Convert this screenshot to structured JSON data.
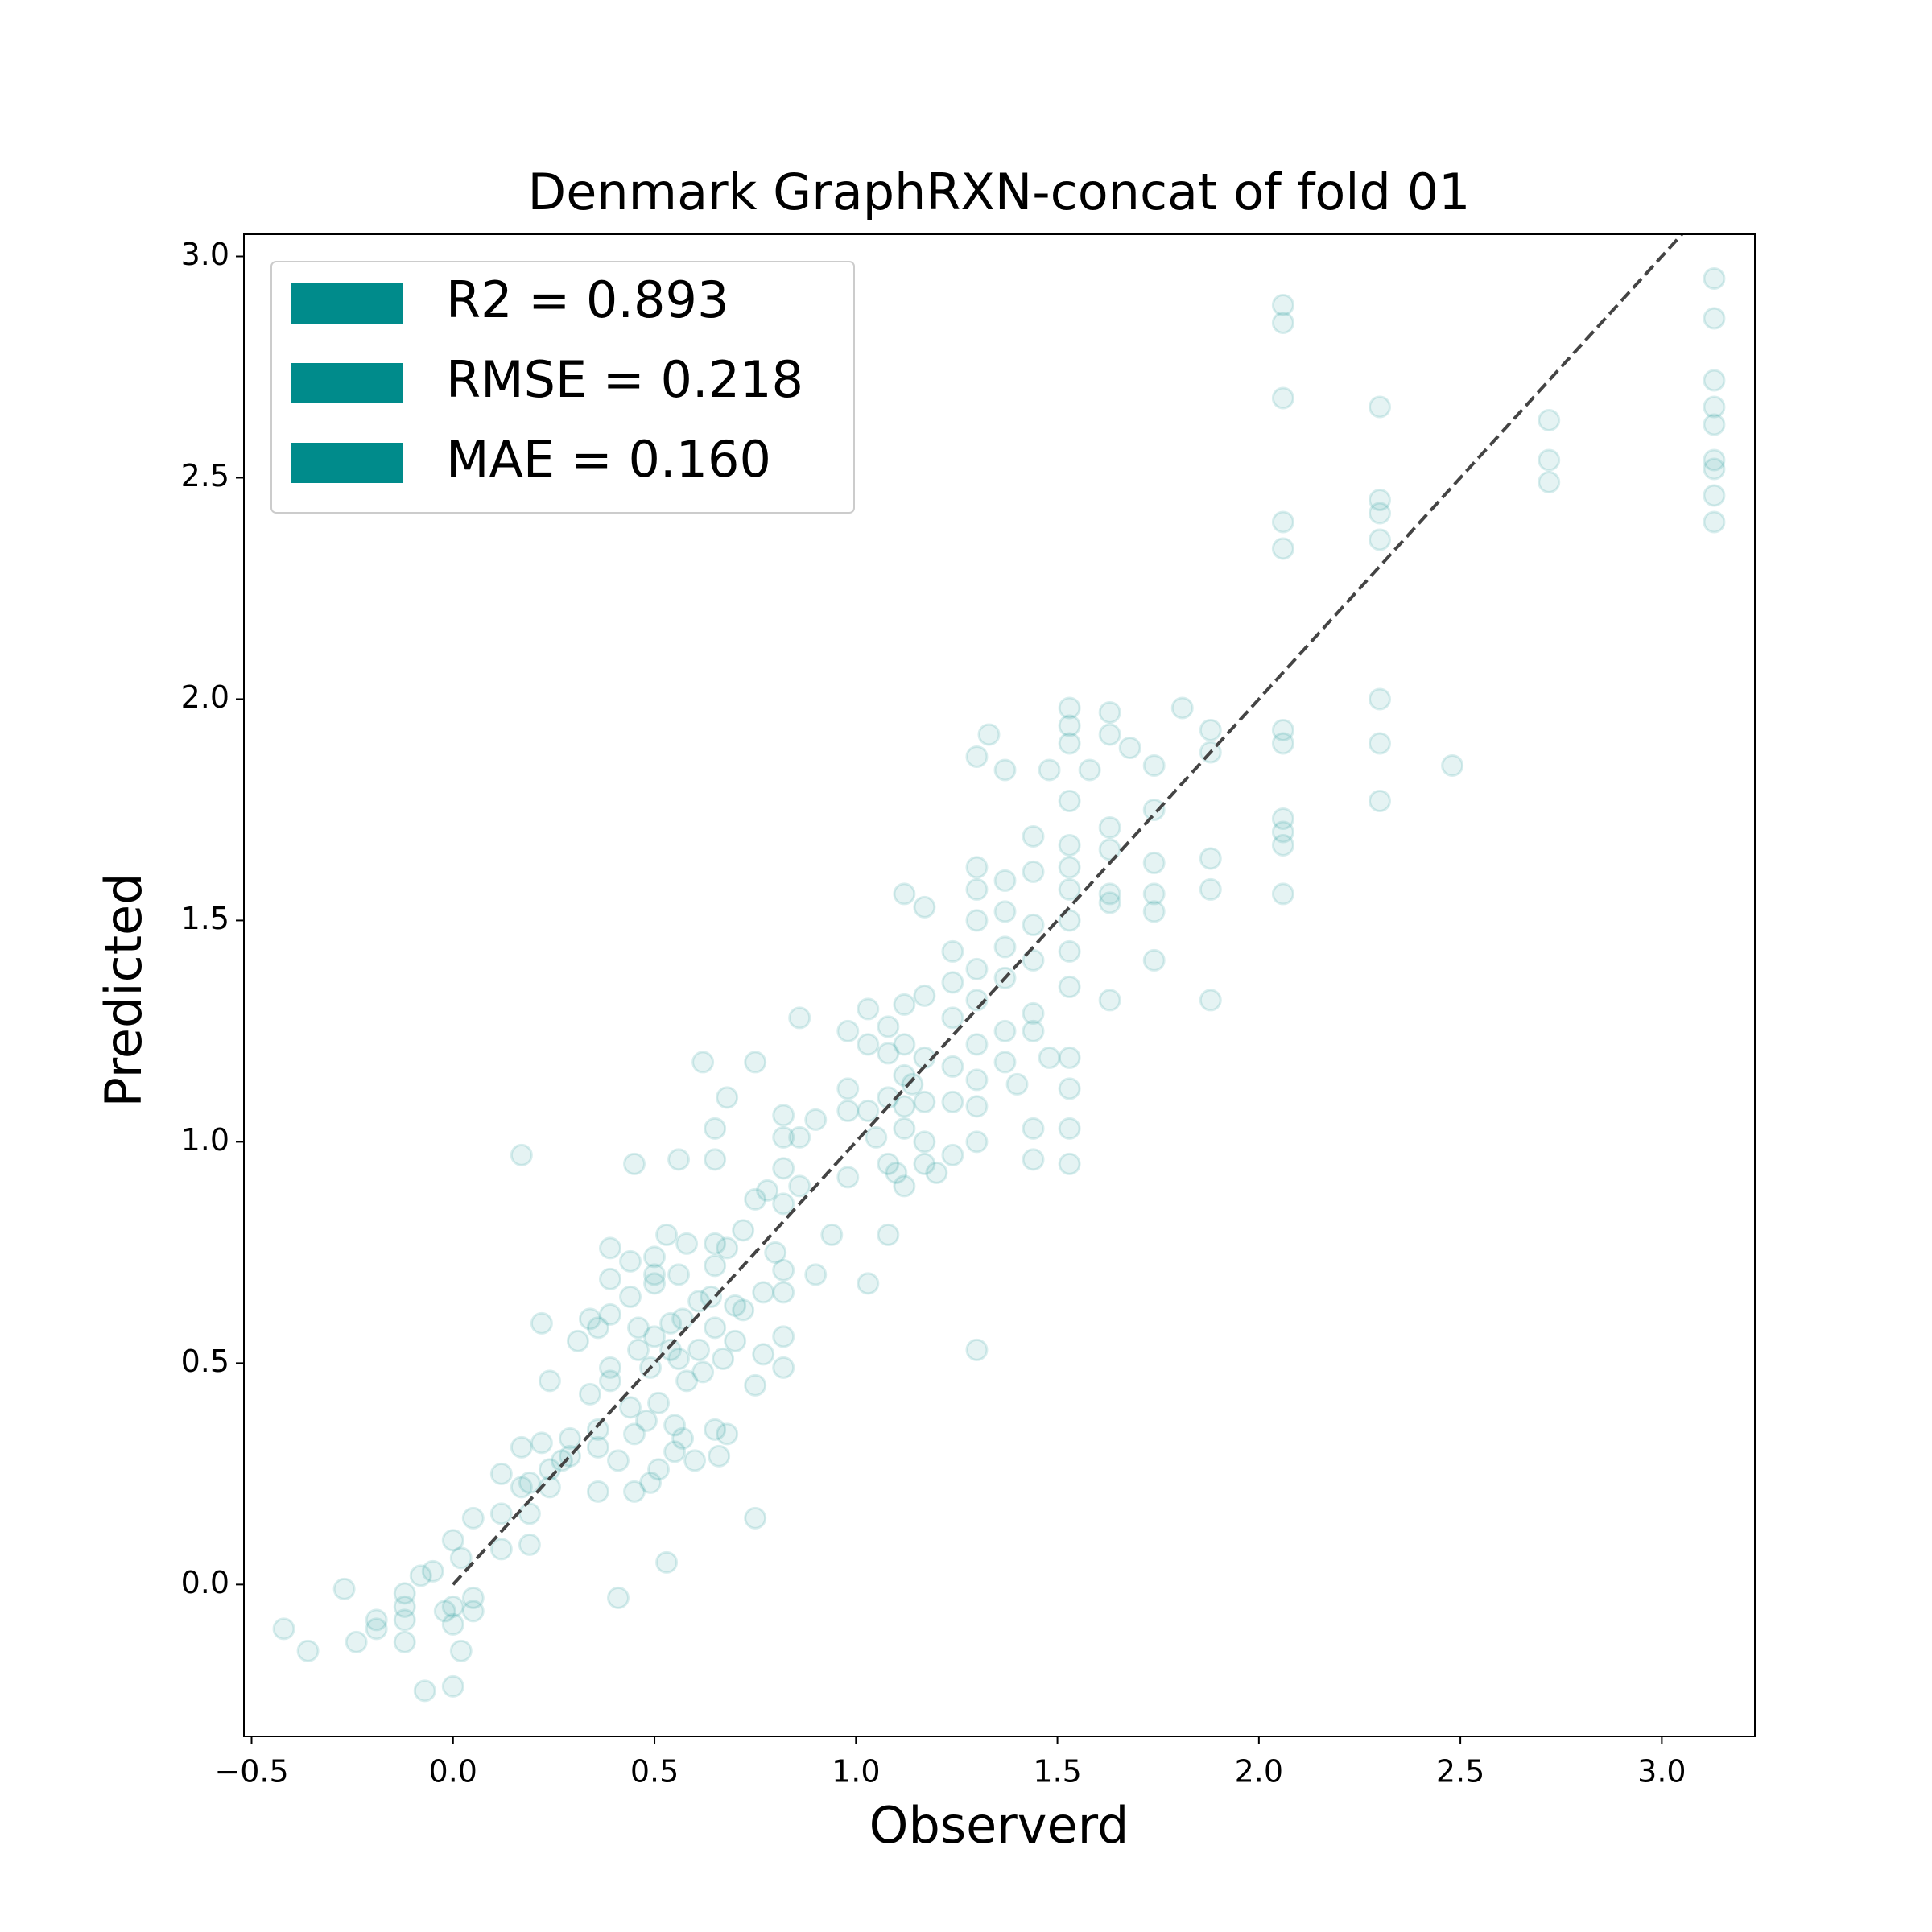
{
  "chart_data": {
    "type": "scatter",
    "title": "Denmark GraphRXN-concat of fold 01",
    "xlabel": "Observerd",
    "ylabel": "Predicted",
    "color": "#008b8b",
    "alpha": 0.1,
    "xlim": [
      -0.519,
      3.231
    ],
    "ylim": [
      -0.343,
      3.05
    ],
    "xticks": [
      {
        "value": -0.5,
        "label": "−0.5"
      },
      {
        "value": 0,
        "label": "0.0"
      },
      0.5,
      {
        "value": 1,
        "label": "1.0"
      },
      1.5,
      {
        "value": 2,
        "label": "2.0"
      },
      2.5,
      {
        "value": 3,
        "label": "3.0"
      }
    ],
    "yticks": [
      {
        "value": 0,
        "label": "0.0"
      },
      0.5,
      {
        "value": 1,
        "label": "1.0"
      },
      1.5,
      {
        "value": 2,
        "label": "2.0"
      },
      2.5,
      {
        "value": 3,
        "label": "3.0"
      }
    ],
    "reference_line": {
      "x": [
        0,
        3.05
      ],
      "y": [
        0,
        3.05
      ],
      "color": "#444444"
    },
    "legend": {
      "loc": "upper left",
      "entries": [
        "R2 = 0.893",
        "RMSE = 0.218",
        "MAE = 0.160"
      ]
    },
    "x": [
      -0.42,
      -0.36,
      -0.27,
      -0.24,
      -0.19,
      -0.19,
      -0.12,
      -0.12,
      -0.12,
      -0.12,
      -0.08,
      -0.07,
      -0.05,
      -0.02,
      0.0,
      0.0,
      0.0,
      0.0,
      0.02,
      0.02,
      0.05,
      0.05,
      0.05,
      0.12,
      0.12,
      0.12,
      0.17,
      0.17,
      0.17,
      0.19,
      0.19,
      0.19,
      0.22,
      0.22,
      0.24,
      0.24,
      0.24,
      0.27,
      0.29,
      0.29,
      0.31,
      0.34,
      0.34,
      0.36,
      0.36,
      0.36,
      0.36,
      0.39,
      0.39,
      0.39,
      0.39,
      0.39,
      0.41,
      0.41,
      0.44,
      0.44,
      0.44,
      0.45,
      0.45,
      0.45,
      0.46,
      0.46,
      0.48,
      0.49,
      0.49,
      0.5,
      0.5,
      0.5,
      0.5,
      0.51,
      0.51,
      0.53,
      0.53,
      0.54,
      0.54,
      0.55,
      0.55,
      0.56,
      0.56,
      0.56,
      0.57,
      0.57,
      0.58,
      0.58,
      0.6,
      0.61,
      0.61,
      0.62,
      0.62,
      0.64,
      0.65,
      0.65,
      0.65,
      0.65,
      0.65,
      0.65,
      0.66,
      0.67,
      0.68,
      0.68,
      0.7,
      0.7,
      0.68,
      0.72,
      0.72,
      0.75,
      0.75,
      0.75,
      0.75,
      0.77,
      0.77,
      0.78,
      0.8,
      0.82,
      0.82,
      0.82,
      0.82,
      0.82,
      0.82,
      0.82,
      0.82,
      0.86,
      0.86,
      0.86,
      0.9,
      0.9,
      0.94,
      0.98,
      0.98,
      0.98,
      0.98,
      1.03,
      1.03,
      1.03,
      1.03,
      1.05,
      1.08,
      1.08,
      1.08,
      1.08,
      1.08,
      1.1,
      1.12,
      1.12,
      1.12,
      1.12,
      1.12,
      1.12,
      1.12,
      1.14,
      1.17,
      1.17,
      1.17,
      1.17,
      1.17,
      1.17,
      1.2,
      1.24,
      1.24,
      1.24,
      1.24,
      1.24,
      1.24,
      1.3,
      1.3,
      1.3,
      1.3,
      1.3,
      1.3,
      1.3,
      1.3,
      1.3,
      1.3,
      1.3,
      1.33,
      1.37,
      1.37,
      1.37,
      1.37,
      1.37,
      1.37,
      1.37,
      1.4,
      1.44,
      1.44,
      1.44,
      1.44,
      1.44,
      1.44,
      1.44,
      1.44,
      1.48,
      1.48,
      1.53,
      1.53,
      1.53,
      1.53,
      1.53,
      1.53,
      1.53,
      1.53,
      1.53,
      1.53,
      1.53,
      1.53,
      1.53,
      1.53,
      1.58,
      1.63,
      1.63,
      1.63,
      1.63,
      1.63,
      1.63,
      1.63,
      1.68,
      1.74,
      1.74,
      1.74,
      1.74,
      1.74,
      1.74,
      1.81,
      1.88,
      1.88,
      1.88,
      1.88,
      1.88,
      2.06,
      2.06,
      2.06,
      2.06,
      2.06,
      2.06,
      2.06,
      2.06,
      2.06,
      2.06,
      2.06,
      2.3,
      2.3,
      2.3,
      2.3,
      2.3,
      2.3,
      2.3,
      2.48,
      2.72,
      2.72,
      2.72,
      3.13,
      3.13,
      3.13,
      3.13,
      3.13,
      3.13,
      3.13,
      3.13,
      3.13
    ],
    "values": [
      -0.1,
      -0.15,
      -0.01,
      -0.13,
      -0.08,
      -0.1,
      -0.02,
      -0.05,
      -0.08,
      -0.13,
      0.02,
      -0.24,
      0.03,
      -0.06,
      0.1,
      -0.05,
      -0.09,
      -0.23,
      0.06,
      -0.15,
      0.15,
      -0.03,
      -0.06,
      0.25,
      0.16,
      0.08,
      0.97,
      0.31,
      0.22,
      0.09,
      0.23,
      0.16,
      0.59,
      0.32,
      0.46,
      0.22,
      0.26,
      0.28,
      0.29,
      0.33,
      0.55,
      0.6,
      0.43,
      0.58,
      0.35,
      0.31,
      0.21,
      0.76,
      0.69,
      0.61,
      0.46,
      0.49,
      0.28,
      -0.03,
      0.4,
      0.73,
      0.65,
      0.95,
      0.34,
      0.21,
      0.58,
      0.53,
      0.37,
      0.49,
      0.23,
      0.74,
      0.7,
      0.68,
      0.56,
      0.41,
      0.26,
      0.05,
      0.79,
      0.59,
      0.53,
      0.3,
      0.36,
      0.96,
      0.7,
      0.51,
      0.6,
      0.33,
      0.77,
      0.46,
      0.28,
      0.53,
      0.64,
      1.18,
      0.48,
      0.65,
      1.03,
      0.96,
      0.77,
      0.72,
      0.58,
      0.35,
      0.29,
      0.51,
      1.1,
      0.76,
      0.63,
      0.55,
      0.34,
      0.8,
      0.62,
      1.18,
      0.45,
      0.15,
      0.87,
      0.52,
      0.66,
      0.89,
      0.75,
      1.06,
      1.01,
      0.94,
      0.86,
      0.71,
      0.66,
      0.56,
      0.49,
      1.28,
      1.01,
      0.9,
      1.05,
      0.7,
      0.79,
      1.07,
      0.92,
      1.25,
      1.12,
      1.3,
      1.22,
      1.07,
      0.68,
      1.01,
      1.1,
      1.2,
      1.26,
      0.95,
      0.79,
      0.93,
      1.56,
      1.31,
      1.22,
      1.15,
      1.08,
      1.03,
      0.9,
      1.13,
      1.53,
      1.33,
      1.19,
      1.09,
      1.0,
      0.95,
      0.93,
      1.43,
      1.36,
      1.28,
      1.17,
      1.09,
      0.97,
      1.87,
      1.62,
      1.57,
      1.5,
      1.39,
      1.32,
      1.22,
      1.14,
      1.08,
      1.0,
      0.53,
      1.92,
      1.84,
      1.59,
      1.52,
      1.44,
      1.37,
      1.25,
      1.18,
      1.13,
      1.69,
      1.61,
      1.49,
      1.41,
      1.29,
      1.25,
      1.03,
      0.96,
      1.19,
      1.84,
      1.98,
      1.94,
      1.9,
      1.77,
      1.67,
      1.62,
      1.57,
      1.5,
      1.43,
      1.35,
      1.19,
      1.12,
      1.03,
      0.95,
      1.84,
      1.97,
      1.92,
      1.71,
      1.66,
      1.56,
      1.54,
      1.32,
      1.89,
      1.85,
      1.75,
      1.63,
      1.56,
      1.52,
      1.41,
      1.98,
      1.93,
      1.88,
      1.64,
      1.57,
      1.32,
      2.89,
      2.85,
      2.68,
      2.4,
      2.34,
      1.93,
      1.9,
      1.73,
      1.7,
      1.67,
      1.56,
      2.66,
      2.45,
      2.42,
      2.36,
      2.0,
      1.9,
      1.77,
      1.85,
      2.63,
      2.54,
      2.49,
      2.95,
      2.86,
      2.72,
      2.66,
      2.62,
      2.54,
      2.52,
      2.46,
      2.4
    ]
  }
}
